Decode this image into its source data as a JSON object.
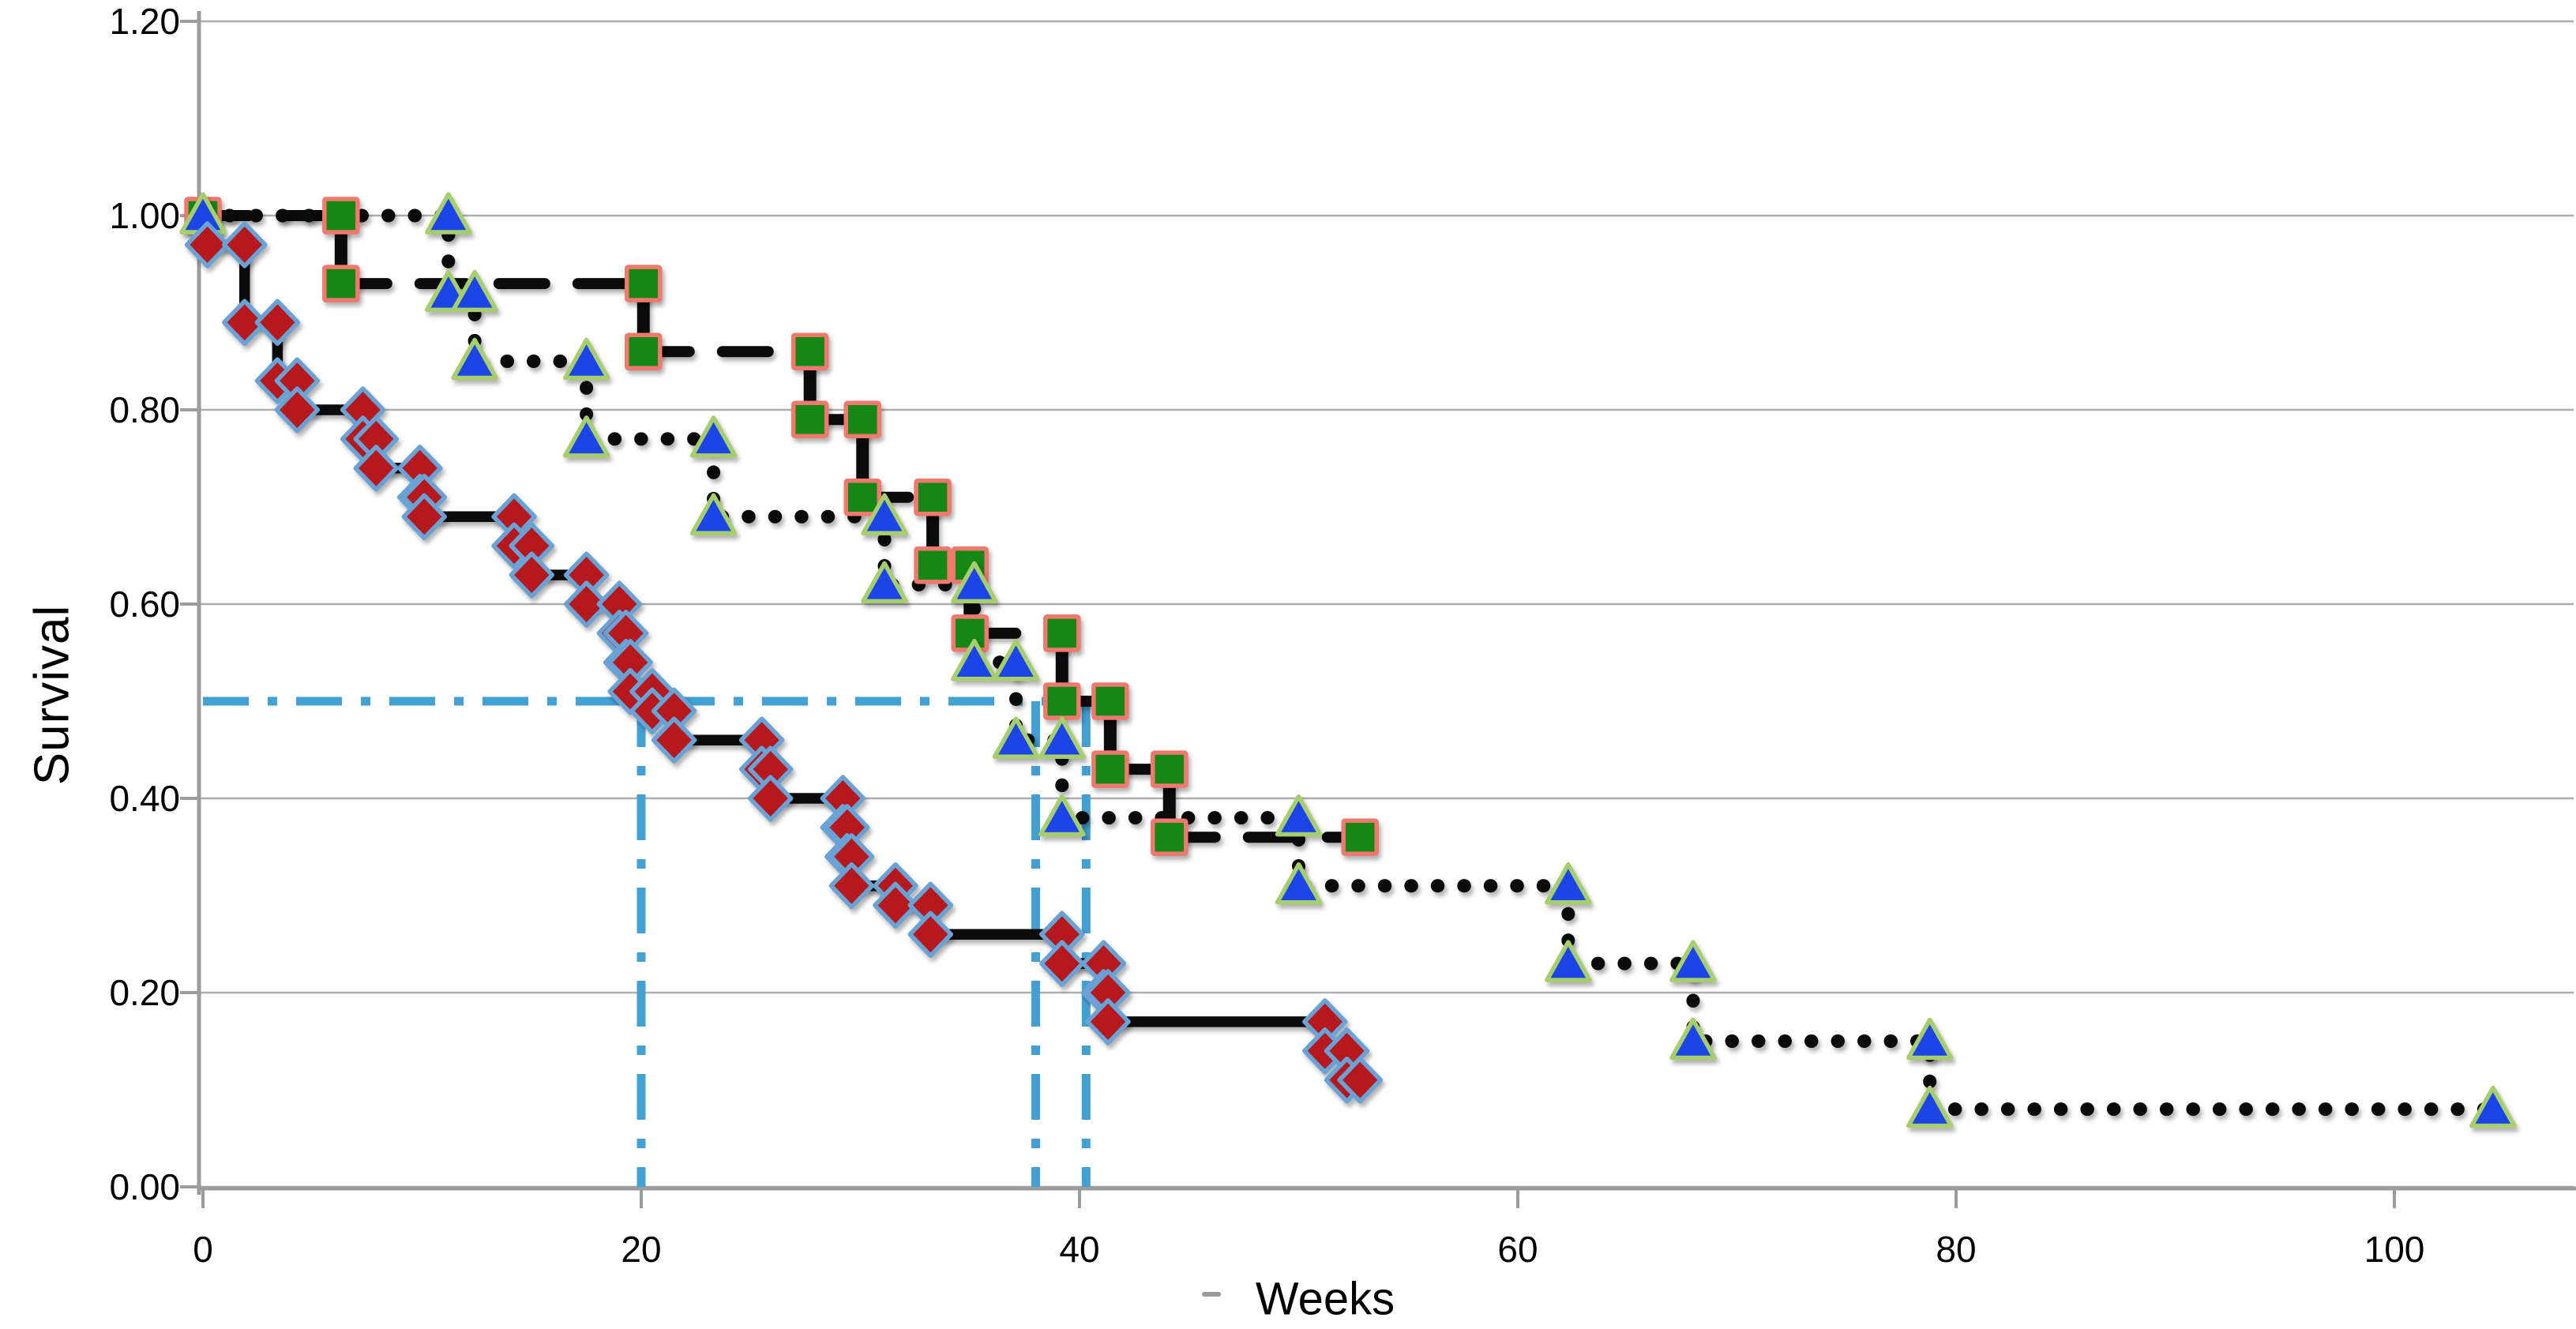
{
  "chart_data": {
    "type": "line",
    "chart_style": "kaplan-meier-step-survival-curves",
    "title": "",
    "xlabel": "Weeks",
    "ylabel": "Survival",
    "xlim": [
      0,
      109
    ],
    "ylim": [
      0,
      1.2
    ],
    "x_ticks": [
      0,
      20,
      40,
      60,
      80,
      100
    ],
    "y_ticks": [
      0.0,
      0.2,
      0.4,
      0.6,
      0.8,
      1.0,
      1.2
    ],
    "y_tick_labels": [
      "0.00",
      "0.20",
      "0.40",
      "0.60",
      "0.80",
      "1.00",
      "1.20"
    ],
    "grid": "horizontal-only",
    "legend": "none",
    "series": [
      {
        "name": "group-green-squares-dashed-line",
        "marker": "square",
        "marker_fill": "#148714",
        "marker_stroke": "#F0786C",
        "line_color": "#0b0b0b",
        "line_style": "dashed",
        "points": [
          [
            0,
            1.0
          ],
          [
            6.3,
            1.0
          ],
          [
            6.3,
            0.93
          ],
          [
            20.1,
            0.93
          ],
          [
            20.1,
            0.86
          ],
          [
            27.7,
            0.86
          ],
          [
            27.7,
            0.79
          ],
          [
            30.1,
            0.79
          ],
          [
            30.1,
            0.71
          ],
          [
            33.3,
            0.71
          ],
          [
            33.3,
            0.64
          ],
          [
            35.0,
            0.64
          ],
          [
            35.0,
            0.57
          ],
          [
            39.2,
            0.57
          ],
          [
            39.2,
            0.5
          ],
          [
            41.4,
            0.5
          ],
          [
            41.4,
            0.43
          ],
          [
            44.1,
            0.43
          ],
          [
            44.1,
            0.36
          ],
          [
            52.8,
            0.36
          ]
        ]
      },
      {
        "name": "group-blue-triangles-dotted-line",
        "marker": "triangle",
        "marker_fill": "#1C45E8",
        "marker_stroke": "#A7CE6D",
        "line_color": "#0b0b0b",
        "line_style": "dotted",
        "points": [
          [
            0,
            1.0
          ],
          [
            11.2,
            1.0
          ],
          [
            11.2,
            0.92
          ],
          [
            12.4,
            0.92
          ],
          [
            12.4,
            0.85
          ],
          [
            17.5,
            0.85
          ],
          [
            17.5,
            0.77
          ],
          [
            23.3,
            0.77
          ],
          [
            23.3,
            0.69
          ],
          [
            31.1,
            0.69
          ],
          [
            31.1,
            0.62
          ],
          [
            35.2,
            0.62
          ],
          [
            35.2,
            0.54
          ],
          [
            37.1,
            0.54
          ],
          [
            37.1,
            0.46
          ],
          [
            39.2,
            0.46
          ],
          [
            39.2,
            0.38
          ],
          [
            50.0,
            0.38
          ],
          [
            50.0,
            0.31
          ],
          [
            62.3,
            0.31
          ],
          [
            62.3,
            0.23
          ],
          [
            68.0,
            0.23
          ],
          [
            68.0,
            0.15
          ],
          [
            78.8,
            0.15
          ],
          [
            78.8,
            0.08
          ],
          [
            104.5,
            0.08
          ]
        ]
      },
      {
        "name": "group-red-diamonds-solid-line",
        "marker": "diamond",
        "marker_fill": "#B5191E",
        "marker_stroke": "#69A3D6",
        "line_color": "#0b0b0b",
        "line_style": "solid",
        "points": [
          [
            0.2,
            0.97
          ],
          [
            1.9,
            0.97
          ],
          [
            1.9,
            0.89
          ],
          [
            3.4,
            0.89
          ],
          [
            3.4,
            0.83
          ],
          [
            4.3,
            0.83
          ],
          [
            4.3,
            0.8
          ],
          [
            7.3,
            0.8
          ],
          [
            7.3,
            0.77
          ],
          [
            7.9,
            0.77
          ],
          [
            7.9,
            0.74
          ],
          [
            9.9,
            0.74
          ],
          [
            9.9,
            0.71
          ],
          [
            10.1,
            0.71
          ],
          [
            10.1,
            0.69
          ],
          [
            14.2,
            0.69
          ],
          [
            14.2,
            0.66
          ],
          [
            15.0,
            0.66
          ],
          [
            15.0,
            0.63
          ],
          [
            17.5,
            0.63
          ],
          [
            17.5,
            0.6
          ],
          [
            19.0,
            0.6
          ],
          [
            19.0,
            0.57
          ],
          [
            19.3,
            0.57
          ],
          [
            19.3,
            0.54
          ],
          [
            19.5,
            0.54
          ],
          [
            19.5,
            0.51
          ],
          [
            20.5,
            0.51
          ],
          [
            20.5,
            0.49
          ],
          [
            21.5,
            0.49
          ],
          [
            21.5,
            0.46
          ],
          [
            25.5,
            0.46
          ],
          [
            25.5,
            0.43
          ],
          [
            25.9,
            0.43
          ],
          [
            25.9,
            0.4
          ],
          [
            29.2,
            0.4
          ],
          [
            29.2,
            0.37
          ],
          [
            29.4,
            0.37
          ],
          [
            29.4,
            0.34
          ],
          [
            29.6,
            0.34
          ],
          [
            29.6,
            0.31
          ],
          [
            31.6,
            0.31
          ],
          [
            31.6,
            0.29
          ],
          [
            33.2,
            0.29
          ],
          [
            33.2,
            0.26
          ],
          [
            39.2,
            0.26
          ],
          [
            39.2,
            0.23
          ],
          [
            41.1,
            0.23
          ],
          [
            41.1,
            0.2
          ],
          [
            41.3,
            0.2
          ],
          [
            41.3,
            0.17
          ],
          [
            51.2,
            0.17
          ],
          [
            51.2,
            0.14
          ],
          [
            52.2,
            0.14
          ],
          [
            52.2,
            0.11
          ],
          [
            52.8,
            0.11
          ]
        ]
      }
    ],
    "reference_lines": {
      "color": "#43A0D3",
      "style": "dash-dot",
      "horizontal": {
        "y": 0.5,
        "x_start": 0,
        "x_end": 41.4
      },
      "vertical": [
        {
          "x": 20.0,
          "y_top": 0.5,
          "y_bottom": 0
        },
        {
          "x": 38.0,
          "y_top": 0.5,
          "y_bottom": 0
        },
        {
          "x": 40.3,
          "y_top": 0.5,
          "y_bottom": 0
        }
      ]
    },
    "colors": {
      "gridline": "#ADADAD",
      "axis": "#9C9C9C",
      "tick": "#9C9C9C",
      "text": "#000000",
      "series_line": "#0b0b0b",
      "background": "#ffffff"
    },
    "decorations": {
      "stray_dash_left_of_xlabel": "-"
    }
  }
}
